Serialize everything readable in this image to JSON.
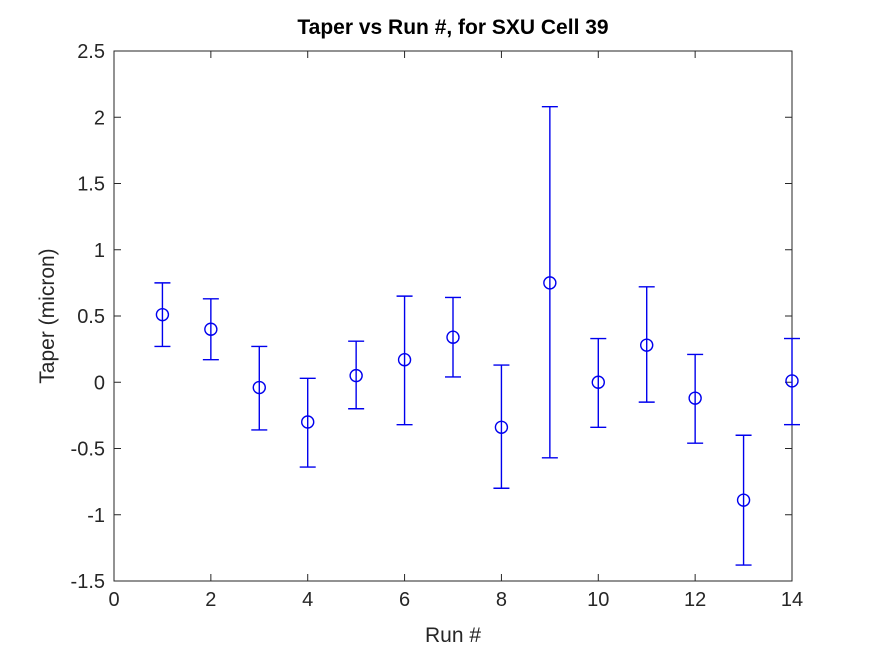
{
  "chart_data": {
    "type": "scatter",
    "subtype": "errorbar",
    "title": "Taper vs Run #, for SXU Cell 39",
    "xlabel": "Run #",
    "ylabel": "Taper (micron)",
    "xlim": [
      0,
      14
    ],
    "ylim": [
      -1.5,
      2.5
    ],
    "x_ticks": [
      0,
      2,
      4,
      6,
      8,
      10,
      12,
      14
    ],
    "x_tick_labels": [
      "0",
      "2",
      "4",
      "6",
      "8",
      "10",
      "12",
      "14"
    ],
    "y_ticks": [
      -1.5,
      -1,
      -0.5,
      0,
      0.5,
      1,
      1.5,
      2,
      2.5
    ],
    "y_tick_labels": [
      "-1.5",
      "-1",
      "-0.5",
      "0",
      "0.5",
      "1",
      "1.5",
      "2",
      "2.5"
    ],
    "grid": false,
    "legend": null,
    "marker": "open-circle",
    "series_color": "#0000EE",
    "axis_color": "#262626",
    "title_color": "#000000",
    "background_color": "#ffffff",
    "points": [
      {
        "x": 1,
        "y": 0.51,
        "y_low": 0.27,
        "y_high": 0.75
      },
      {
        "x": 2,
        "y": 0.4,
        "y_low": 0.17,
        "y_high": 0.63
      },
      {
        "x": 3,
        "y": -0.04,
        "y_low": -0.36,
        "y_high": 0.27
      },
      {
        "x": 4,
        "y": -0.3,
        "y_low": -0.64,
        "y_high": 0.03
      },
      {
        "x": 5,
        "y": 0.05,
        "y_low": -0.2,
        "y_high": 0.31
      },
      {
        "x": 6,
        "y": 0.17,
        "y_low": -0.32,
        "y_high": 0.65
      },
      {
        "x": 7,
        "y": 0.34,
        "y_low": 0.04,
        "y_high": 0.64
      },
      {
        "x": 8,
        "y": -0.34,
        "y_low": -0.8,
        "y_high": 0.13
      },
      {
        "x": 9,
        "y": 0.75,
        "y_low": -0.57,
        "y_high": 2.08
      },
      {
        "x": 10,
        "y": 0.0,
        "y_low": -0.34,
        "y_high": 0.33
      },
      {
        "x": 11,
        "y": 0.28,
        "y_low": -0.15,
        "y_high": 0.72
      },
      {
        "x": 12,
        "y": -0.12,
        "y_low": -0.46,
        "y_high": 0.21
      },
      {
        "x": 13,
        "y": -0.89,
        "y_low": -1.38,
        "y_high": -0.4
      },
      {
        "x": 14,
        "y": 0.01,
        "y_low": -0.32,
        "y_high": 0.33
      }
    ]
  }
}
